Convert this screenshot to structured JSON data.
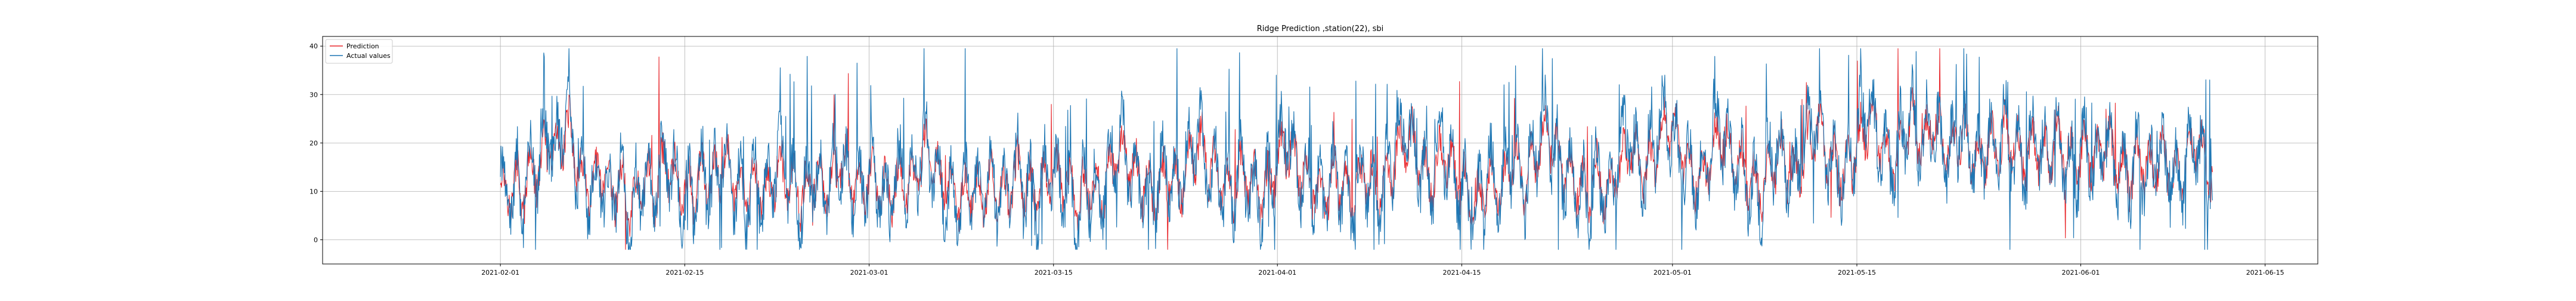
{
  "chart_data": {
    "type": "line",
    "title": "Ridge Prediction ,station(22), sbi",
    "xlabel": "",
    "ylabel": "",
    "xlim": [
      "2021-01-18T12:00",
      "2021-06-19"
    ],
    "ylim": [
      -5,
      42
    ],
    "x_ticks": [
      "2021-02-01",
      "2021-02-15",
      "2021-03-01",
      "2021-03-15",
      "2021-04-01",
      "2021-04-15",
      "2021-05-01",
      "2021-05-15",
      "2021-06-01",
      "2021-06-15"
    ],
    "y_ticks": [
      0,
      10,
      20,
      30,
      40
    ],
    "grid": true,
    "legend_position": "top-left",
    "x_start": "2021-02-01",
    "x_end": "2021-06-11",
    "series": [
      {
        "name": "Prediction",
        "color": "#e8262b",
        "anchor_values": [
          13,
          9,
          11,
          10,
          12,
          9,
          11,
          13,
          15,
          14,
          16,
          18,
          20,
          17,
          19,
          22,
          24,
          21,
          18,
          14,
          12,
          10,
          12,
          11,
          14,
          13,
          10,
          9,
          11,
          12,
          10,
          8,
          7,
          9,
          11,
          13,
          12,
          10,
          11,
          14,
          17,
          15,
          13,
          12,
          10,
          9,
          11,
          10,
          12,
          14,
          13,
          11,
          12,
          14,
          16,
          15,
          13,
          12,
          11,
          10,
          9,
          11,
          12,
          10,
          9,
          10,
          12,
          14,
          15,
          13,
          12,
          11,
          10,
          9,
          10,
          12,
          13,
          12,
          11,
          10,
          12,
          14,
          16,
          15,
          13,
          12,
          11,
          10,
          12,
          13,
          14,
          12,
          11,
          10,
          9,
          10,
          11,
          13,
          12,
          11,
          12,
          14,
          16,
          18,
          17,
          15,
          13,
          12,
          11,
          10,
          9,
          8,
          9,
          10,
          11,
          10,
          9,
          10,
          11,
          12,
          11,
          10,
          9,
          10,
          12,
          14,
          13,
          12,
          11,
          10,
          9,
          11,
          13,
          15,
          14,
          13,
          12,
          11,
          10,
          9,
          8,
          10,
          12,
          11,
          10,
          9,
          11,
          13,
          15,
          17,
          19,
          18,
          16,
          14,
          13,
          12,
          11,
          10,
          9,
          10,
          12,
          14,
          13,
          12,
          11,
          13,
          15,
          17,
          19,
          20,
          18,
          16,
          15,
          14,
          13,
          12,
          11,
          10,
          12,
          14,
          13,
          12,
          11,
          10,
          9,
          10,
          12,
          14,
          16,
          18,
          20,
          19,
          17,
          15,
          14,
          13,
          12,
          11,
          10,
          9,
          10,
          12,
          13,
          12,
          11,
          10,
          9,
          10,
          12,
          14,
          13,
          12,
          11,
          10,
          12,
          14,
          16,
          18,
          20,
          22,
          21,
          19,
          17,
          15,
          13,
          12,
          14,
          16,
          18,
          17,
          15,
          13,
          12,
          11,
          10,
          9,
          8,
          9,
          11,
          13,
          12,
          11,
          10,
          12,
          14,
          16,
          15,
          13,
          12,
          14,
          16,
          18,
          20,
          22,
          21,
          19,
          17,
          15,
          14,
          13,
          12,
          11,
          10,
          9,
          11,
          13,
          12,
          11,
          10,
          12,
          14,
          16,
          18,
          20,
          19,
          17,
          15,
          14,
          16,
          18,
          20,
          22,
          24,
          23,
          21,
          19,
          17,
          15,
          14,
          13,
          12,
          14,
          16,
          18,
          20,
          22,
          21,
          19,
          17,
          16,
          15,
          14,
          13,
          12,
          11,
          10,
          12,
          14,
          16,
          18,
          17,
          15,
          14,
          13,
          15,
          17,
          19,
          21,
          23,
          22,
          20,
          18,
          16,
          15,
          14,
          13,
          15,
          17,
          19,
          21,
          23,
          25,
          24,
          22,
          20,
          18,
          17,
          16,
          18,
          20,
          22,
          24,
          23,
          21,
          20,
          22,
          24,
          23,
          21,
          20,
          19,
          18,
          20,
          22,
          21,
          19,
          18,
          17,
          16,
          18,
          20,
          19,
          18,
          20,
          22,
          21,
          19,
          18,
          17,
          16,
          18,
          20,
          19,
          18,
          17,
          19,
          21,
          20,
          18,
          17,
          16,
          15,
          17,
          19,
          18,
          17,
          16,
          18,
          20,
          19,
          17,
          16,
          15,
          14,
          13,
          15,
          17,
          16,
          15,
          14,
          16,
          18,
          17,
          15,
          14,
          13,
          12,
          14,
          16,
          18,
          20,
          19,
          17,
          15,
          14
        ]
      },
      {
        "name": "Actual values",
        "color": "#1f77b4",
        "anchor_values": [
          14,
          8,
          12,
          9,
          13,
          7,
          12,
          15,
          17,
          13,
          18,
          21,
          23,
          16,
          20,
          25,
          27,
          22,
          17,
          13,
          11,
          8,
          13,
          10,
          15,
          12,
          9,
          7,
          12,
          13,
          9,
          6,
          5,
          10,
          12,
          14,
          11,
          9,
          12,
          16,
          19,
          14,
          12,
          11,
          9,
          7,
          12,
          9,
          13,
          15,
          12,
          10,
          13,
          15,
          18,
          14,
          12,
          11,
          10,
          8,
          7,
          12,
          13,
          9,
          8,
          11,
          13,
          16,
          17,
          12,
          11,
          10,
          9,
          7,
          11,
          13,
          14,
          11,
          10,
          9,
          13,
          16,
          18,
          14,
          12,
          11,
          10,
          9,
          13,
          14,
          15,
          11,
          10,
          9,
          7,
          11,
          12,
          15,
          11,
          10,
          13,
          16,
          18,
          21,
          16,
          14,
          12,
          11,
          10,
          8,
          7,
          6,
          10,
          11,
          12,
          9,
          8,
          11,
          12,
          13,
          10,
          9,
          8,
          11,
          13,
          16,
          12,
          11,
          10,
          9,
          7,
          12,
          15,
          17,
          13,
          12,
          11,
          10,
          9,
          7,
          6,
          11,
          13,
          10,
          9,
          8,
          12,
          15,
          17,
          19,
          22,
          17,
          15,
          13,
          12,
          11,
          10,
          9,
          7,
          11,
          13,
          16,
          12,
          11,
          10,
          14,
          17,
          19,
          22,
          23,
          17,
          15,
          14,
          13,
          12,
          11,
          10,
          8,
          13,
          16,
          12,
          11,
          10,
          9,
          7,
          11,
          13,
          16,
          18,
          21,
          23,
          18,
          16,
          14,
          13,
          12,
          11,
          10,
          9,
          7,
          11,
          13,
          14,
          11,
          10,
          9,
          7,
          11,
          13,
          16,
          12,
          11,
          10,
          9,
          13,
          16,
          18,
          21,
          23,
          25,
          20,
          18,
          16,
          14,
          12,
          11,
          15,
          18,
          21,
          16,
          14,
          12,
          11,
          10,
          9,
          7,
          6,
          10,
          12,
          15,
          11,
          10,
          9,
          13,
          16,
          18,
          14,
          12,
          11,
          15,
          18,
          21,
          23,
          25,
          20,
          18,
          16,
          14,
          13,
          12,
          11,
          10,
          9,
          7,
          12,
          15,
          11,
          10,
          9,
          13,
          16,
          18,
          21,
          23,
          18,
          16,
          14,
          13,
          17,
          20,
          23,
          25,
          27,
          22,
          20,
          18,
          16,
          14,
          13,
          12,
          11,
          15,
          18,
          21,
          23,
          25,
          20,
          18,
          16,
          15,
          14,
          13,
          12,
          11,
          10,
          9,
          13,
          16,
          18,
          21,
          16,
          14,
          13,
          12,
          16,
          19,
          21,
          24,
          26,
          21,
          19,
          17,
          15,
          14,
          13,
          12,
          16,
          19,
          21,
          24,
          26,
          28,
          23,
          21,
          19,
          17,
          16,
          15,
          19,
          22,
          25,
          27,
          22,
          20,
          19,
          23,
          26,
          22,
          20,
          19,
          18,
          17,
          21,
          24,
          20,
          18,
          17,
          16,
          15,
          19,
          22,
          18,
          17,
          21,
          24,
          20,
          18,
          17,
          16,
          15,
          19,
          22,
          18,
          17,
          16,
          20,
          23,
          19,
          17,
          16,
          15,
          14,
          18,
          21,
          17,
          16,
          15,
          19,
          22,
          18,
          16,
          15,
          14,
          13,
          12,
          16,
          19,
          15,
          14,
          13,
          17,
          20,
          16,
          14,
          13,
          12,
          11,
          15,
          18,
          20,
          23,
          18,
          16,
          14,
          13
        ]
      }
    ]
  }
}
